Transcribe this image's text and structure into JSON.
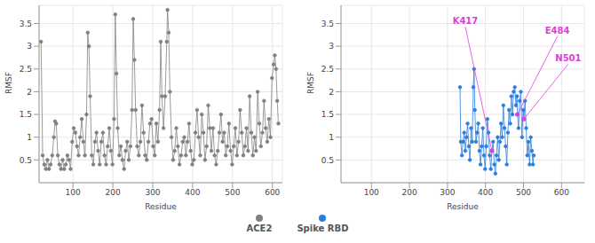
{
  "chart_data": [
    {
      "type": "line",
      "xlabel": "Residue",
      "ylabel": "RMSF",
      "xlim": [
        15,
        625
      ],
      "xticks": [
        100,
        200,
        300,
        400,
        500,
        600
      ],
      "ylim": [
        0,
        3.9
      ],
      "yticks": [
        0.5,
        1,
        1.5,
        2,
        2.5,
        3,
        3.5
      ],
      "grid": true,
      "marker": "circle",
      "x": [
        20,
        24,
        28,
        32,
        36,
        40,
        44,
        48,
        52,
        55,
        58,
        62,
        66,
        70,
        74,
        78,
        82,
        86,
        90,
        94,
        98,
        102,
        106,
        110,
        114,
        118,
        122,
        126,
        130,
        134,
        137,
        140,
        143,
        147,
        151,
        155,
        159,
        163,
        167,
        171,
        175,
        179,
        183,
        187,
        191,
        195,
        199,
        203,
        206,
        209,
        212,
        216,
        220,
        224,
        228,
        232,
        236,
        240,
        244,
        248,
        251,
        254,
        257,
        261,
        265,
        269,
        273,
        277,
        281,
        285,
        289,
        293,
        297,
        301,
        305,
        309,
        313,
        317,
        320,
        323,
        327,
        331,
        335,
        337,
        340,
        343,
        347,
        351,
        355,
        359,
        363,
        367,
        371,
        375,
        379,
        383,
        387,
        391,
        395,
        399,
        403,
        407,
        411,
        415,
        419,
        423,
        427,
        431,
        435,
        439,
        443,
        447,
        451,
        455,
        459,
        463,
        467,
        471,
        475,
        479,
        483,
        487,
        491,
        495,
        499,
        503,
        507,
        511,
        515,
        519,
        523,
        527,
        531,
        535,
        539,
        543,
        547,
        551,
        555,
        559,
        563,
        567,
        571,
        575,
        579,
        583,
        587,
        591,
        595,
        599,
        603,
        606,
        609,
        612,
        615
      ],
      "series": [
        {
          "name": "ACE2",
          "color": "#808080",
          "values": [
            3.1,
            0.6,
            0.4,
            0.3,
            0.5,
            0.3,
            0.4,
            0.6,
            1.0,
            1.35,
            1.3,
            0.6,
            0.4,
            0.3,
            0.5,
            0.3,
            0.4,
            0.6,
            0.5,
            0.3,
            0.9,
            1.2,
            1.1,
            0.8,
            0.6,
            1.0,
            1.4,
            0.9,
            0.6,
            1.5,
            3.3,
            3.0,
            1.9,
            0.6,
            0.4,
            0.9,
            1.1,
            0.7,
            0.4,
            0.9,
            1.1,
            0.6,
            0.4,
            0.8,
            1.2,
            0.7,
            0.4,
            1.4,
            3.7,
            2.4,
            1.2,
            0.6,
            0.8,
            0.5,
            0.3,
            0.7,
            0.9,
            0.5,
            0.8,
            1.6,
            3.6,
            2.7,
            1.6,
            0.8,
            0.6,
            0.9,
            1.7,
            1.1,
            0.6,
            0.5,
            0.9,
            1.3,
            1.4,
            0.8,
            0.6,
            1.3,
            0.9,
            1.6,
            3.1,
            1.9,
            1.2,
            1.9,
            3.1,
            3.8,
            3.3,
            2.0,
            1.0,
            0.5,
            0.7,
            1.2,
            0.8,
            0.4,
            0.6,
            0.9,
            1.0,
            0.6,
            0.9,
            1.3,
            0.7,
            0.4,
            0.5,
            1.1,
            1.6,
            1.0,
            0.6,
            1.5,
            1.1,
            0.5,
            0.8,
            1.7,
            1.2,
            0.7,
            1.2,
            0.6,
            0.4,
            0.7,
            1.1,
            1.5,
            0.9,
            1.1,
            0.6,
            0.8,
            1.3,
            0.7,
            0.4,
            0.8,
            1.2,
            0.6,
            0.9,
            1.6,
            1.1,
            0.6,
            0.8,
            1.2,
            0.7,
            1.9,
            1.1,
            0.6,
            1.0,
            0.7,
            2.0,
            1.3,
            0.8,
            1.1,
            1.8,
            1.2,
            0.9,
            1.4,
            1.0,
            2.3,
            2.6,
            2.8,
            2.5,
            1.8,
            1.3
          ]
        }
      ]
    },
    {
      "type": "line",
      "xlabel": "Residue",
      "ylabel": "RMSF",
      "xlim": [
        20,
        660
      ],
      "xticks": [
        100,
        200,
        300,
        400,
        500,
        600
      ],
      "ylim": [
        0,
        3.9
      ],
      "yticks": [
        0.5,
        1,
        1.5,
        2,
        2.5,
        3,
        3.5
      ],
      "grid": true,
      "marker": "circle",
      "x": [
        333,
        335,
        338,
        341,
        344,
        347,
        350,
        353,
        356,
        359,
        362,
        365,
        368,
        370,
        372,
        375,
        378,
        381,
        384,
        387,
        390,
        393,
        396,
        399,
        402,
        405,
        408,
        411,
        414,
        417,
        420,
        423,
        426,
        429,
        432,
        435,
        438,
        441,
        444,
        447,
        450,
        453,
        456,
        459,
        462,
        465,
        468,
        471,
        474,
        477,
        480,
        483,
        484,
        487,
        490,
        493,
        496,
        499,
        501,
        504,
        507,
        510,
        513,
        516,
        519,
        522,
        525,
        527
      ],
      "series": [
        {
          "name": "Spike RBD",
          "color": "#2a7de1",
          "values": [
            2.1,
            0.9,
            0.6,
            0.9,
            1.1,
            0.7,
            1.0,
            1.3,
            0.8,
            0.5,
            1.2,
            0.9,
            2.1,
            2.5,
            1.6,
            0.9,
            1.1,
            1.3,
            0.7,
            0.4,
            0.8,
            1.2,
            0.6,
            0.3,
            0.8,
            1.4,
            1.1,
            0.6,
            0.3,
            0.7,
            0.9,
            0.4,
            0.2,
            0.6,
            1.0,
            0.5,
            0.9,
            1.3,
            1.0,
            1.7,
            1.2,
            0.8,
            0.4,
            1.1,
            1.6,
            1.3,
            1.9,
            1.5,
            2.0,
            2.1,
            1.7,
            1.9,
            1.5,
            1.2,
            1.8,
            2.0,
            1.0,
            1.6,
            1.4,
            1.8,
            1.2,
            0.6,
            0.9,
            0.4,
            1.0,
            0.7,
            0.4,
            0.6
          ]
        }
      ],
      "annotations": [
        {
          "text": "K417",
          "x": 417,
          "y": 0.7,
          "color": "#e03ce0"
        },
        {
          "text": "E484",
          "x": 484,
          "y": 1.5,
          "color": "#e03ce0"
        },
        {
          "text": "N501",
          "x": 501,
          "y": 1.4,
          "color": "#e03ce0"
        }
      ]
    }
  ]
}
